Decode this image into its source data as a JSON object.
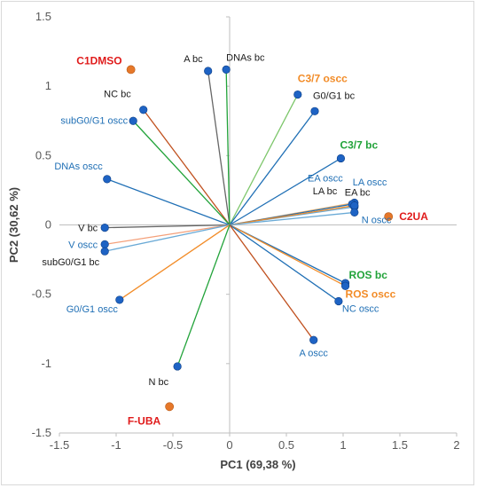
{
  "chart_data": {
    "type": "scatter",
    "title": "",
    "xlabel": "PC1 (69,38 %)",
    "ylabel": "PC2 (30,62 %)",
    "xlim": [
      -1.5,
      2
    ],
    "ylim": [
      -1.5,
      1.5
    ],
    "x_ticks": [
      "-1.5",
      "-1",
      "-0.5",
      "0",
      "0.5",
      "1",
      "1.5",
      "2"
    ],
    "y_ticks": [
      "1.5",
      "1",
      "0.5",
      "0",
      "-0.5",
      "-1",
      "-1.5"
    ],
    "grid": false,
    "colors": {
      "blue": "#1f6fb5",
      "black": "#1a1a1a",
      "green": "#22a33a",
      "orange": "#f28c28",
      "red": "#e01b1b",
      "gray": "#666666",
      "brown": "#c0501e",
      "lightgreen": "#7cc66a",
      "salmon": "#f4a07a",
      "lightblue": "#6aaad6",
      "lightorange": "#f6b26b",
      "marker_blue": "#1e63c4",
      "marker_orange": "#e6782a"
    },
    "vectors": [
      {
        "name": "A bc",
        "x": -0.19,
        "y": 1.11,
        "line_color": "gray",
        "label_color": "black"
      },
      {
        "name": "DNAs bc",
        "x": -0.03,
        "y": 1.12,
        "line_color": "green",
        "label_color": "black"
      },
      {
        "name": "C3/7 oscc",
        "x": 0.6,
        "y": 0.94,
        "line_color": "lightgreen",
        "label_color": "orange"
      },
      {
        "name": "G0/G1 bc",
        "x": 0.75,
        "y": 0.82,
        "line_color": "blue",
        "label_color": "black"
      },
      {
        "name": "NC bc",
        "x": -0.76,
        "y": 0.83,
        "line_color": "brown",
        "label_color": "black"
      },
      {
        "name": "subG0/G1 oscc",
        "x": -0.85,
        "y": 0.75,
        "line_color": "green",
        "label_color": "blue"
      },
      {
        "name": "C3/7 bc",
        "x": 0.98,
        "y": 0.48,
        "line_color": "blue",
        "label_color": "green"
      },
      {
        "name": "DNAs oscc",
        "x": -1.08,
        "y": 0.33,
        "line_color": "blue",
        "label_color": "blue"
      },
      {
        "name": "EA oscc",
        "x": 1.1,
        "y": 0.16,
        "line_color": "lightorange",
        "label_color": "blue"
      },
      {
        "name": "LA oscc",
        "x": 1.1,
        "y": 0.13,
        "line_color": "lightblue",
        "label_color": "blue"
      },
      {
        "name": "LA bc",
        "x": 1.08,
        "y": 0.15,
        "line_color": "blue",
        "label_color": "black"
      },
      {
        "name": "EA bc",
        "x": 1.1,
        "y": 0.14,
        "line_color": "orange",
        "label_color": "black"
      },
      {
        "name": "N oscc",
        "x": 1.1,
        "y": 0.09,
        "line_color": "lightblue",
        "label_color": "blue"
      },
      {
        "name": "V bc",
        "x": -1.1,
        "y": -0.02,
        "line_color": "gray",
        "label_color": "black"
      },
      {
        "name": "V oscc",
        "x": -1.1,
        "y": -0.14,
        "line_color": "salmon",
        "label_color": "blue"
      },
      {
        "name": "subG0/G1 bc",
        "x": -1.1,
        "y": -0.19,
        "line_color": "lightblue",
        "label_color": "black"
      },
      {
        "name": "ROS bc",
        "x": 1.02,
        "y": -0.42,
        "line_color": "blue",
        "label_color": "green"
      },
      {
        "name": "ROS oscc",
        "x": 1.02,
        "y": -0.44,
        "line_color": "orange",
        "label_color": "orange"
      },
      {
        "name": "NC oscc",
        "x": 0.96,
        "y": -0.55,
        "line_color": "blue",
        "label_color": "blue"
      },
      {
        "name": "G0/G1 oscc",
        "x": -0.97,
        "y": -0.54,
        "line_color": "orange",
        "label_color": "blue"
      },
      {
        "name": "A oscc",
        "x": 0.74,
        "y": -0.83,
        "line_color": "brown",
        "label_color": "blue"
      },
      {
        "name": "N bc",
        "x": -0.46,
        "y": -1.02,
        "line_color": "green",
        "label_color": "black"
      }
    ],
    "groups": [
      {
        "name": "C1DMSO",
        "x": -0.87,
        "y": 1.12,
        "label_color": "red"
      },
      {
        "name": "C2UA",
        "x": 1.4,
        "y": 0.06,
        "label_color": "red"
      },
      {
        "name": "F-UBA",
        "x": -0.53,
        "y": -1.31,
        "label_color": "red"
      }
    ]
  }
}
